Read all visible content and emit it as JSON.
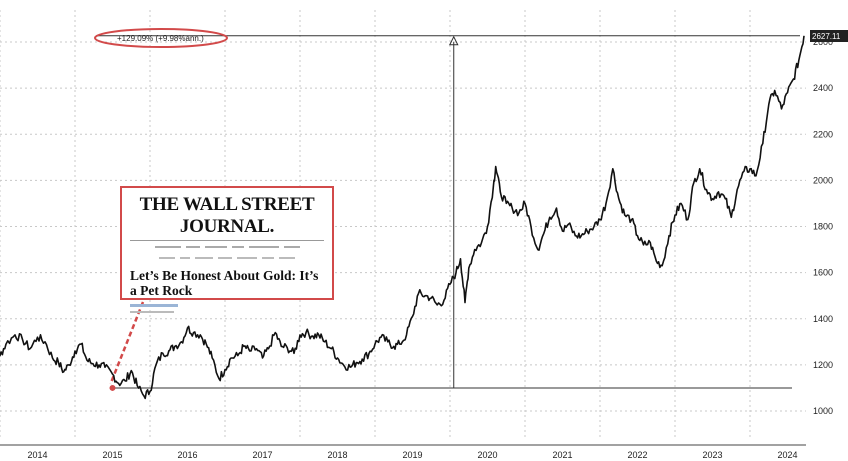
{
  "chart_data": {
    "type": "line",
    "x_tick_labels": [
      "2014",
      "2015",
      "2016",
      "2017",
      "2018",
      "2019",
      "2020",
      "2021",
      "2022",
      "2023",
      "2024"
    ],
    "y_tick_labels": [
      "1000",
      "1200",
      "1400",
      "1600",
      "1800",
      "2000",
      "2200",
      "2400",
      "2600"
    ],
    "ylim": [
      950,
      2650
    ],
    "xlim": [
      2013.7,
      2024.75
    ],
    "grid": true,
    "y_axis_position": "right",
    "series": [
      {
        "color": "#111111",
        "points": [
          [
            2013.7,
            1300
          ],
          [
            2013.82,
            1360
          ],
          [
            2013.92,
            1330
          ],
          [
            2014.0,
            1240
          ],
          [
            2014.08,
            1290
          ],
          [
            2014.2,
            1330
          ],
          [
            2014.3,
            1310
          ],
          [
            2014.4,
            1270
          ],
          [
            2014.5,
            1320
          ],
          [
            2014.6,
            1300
          ],
          [
            2014.7,
            1230
          ],
          [
            2014.78,
            1210
          ],
          [
            2014.85,
            1170
          ],
          [
            2014.92,
            1200
          ],
          [
            2015.0,
            1260
          ],
          [
            2015.08,
            1290
          ],
          [
            2015.16,
            1220
          ],
          [
            2015.24,
            1205
          ],
          [
            2015.32,
            1200
          ],
          [
            2015.4,
            1190
          ],
          [
            2015.5,
            1160
          ],
          [
            2015.58,
            1120
          ],
          [
            2015.67,
            1130
          ],
          [
            2015.75,
            1175
          ],
          [
            2015.83,
            1110
          ],
          [
            2015.92,
            1065
          ],
          [
            2016.0,
            1085
          ],
          [
            2016.08,
            1200
          ],
          [
            2016.17,
            1250
          ],
          [
            2016.25,
            1260
          ],
          [
            2016.33,
            1280
          ],
          [
            2016.42,
            1300
          ],
          [
            2016.5,
            1360
          ],
          [
            2016.58,
            1340
          ],
          [
            2016.67,
            1330
          ],
          [
            2016.75,
            1290
          ],
          [
            2016.83,
            1230
          ],
          [
            2016.92,
            1140
          ],
          [
            2017.0,
            1180
          ],
          [
            2017.08,
            1230
          ],
          [
            2017.17,
            1240
          ],
          [
            2017.25,
            1280
          ],
          [
            2017.33,
            1260
          ],
          [
            2017.42,
            1270
          ],
          [
            2017.5,
            1230
          ],
          [
            2017.58,
            1270
          ],
          [
            2017.67,
            1340
          ],
          [
            2017.75,
            1280
          ],
          [
            2017.83,
            1275
          ],
          [
            2017.92,
            1250
          ],
          [
            2018.0,
            1330
          ],
          [
            2018.08,
            1340
          ],
          [
            2018.17,
            1325
          ],
          [
            2018.25,
            1330
          ],
          [
            2018.33,
            1300
          ],
          [
            2018.42,
            1270
          ],
          [
            2018.5,
            1230
          ],
          [
            2018.58,
            1200
          ],
          [
            2018.67,
            1190
          ],
          [
            2018.75,
            1210
          ],
          [
            2018.83,
            1225
          ],
          [
            2018.92,
            1250
          ],
          [
            2019.0,
            1290
          ],
          [
            2019.08,
            1320
          ],
          [
            2019.17,
            1300
          ],
          [
            2019.25,
            1280
          ],
          [
            2019.33,
            1290
          ],
          [
            2019.42,
            1330
          ],
          [
            2019.5,
            1410
          ],
          [
            2019.58,
            1510
          ],
          [
            2019.67,
            1500
          ],
          [
            2019.75,
            1490
          ],
          [
            2019.83,
            1460
          ],
          [
            2019.92,
            1480
          ],
          [
            2020.0,
            1550
          ],
          [
            2020.08,
            1600
          ],
          [
            2020.14,
            1660
          ],
          [
            2020.2,
            1470
          ],
          [
            2020.25,
            1620
          ],
          [
            2020.33,
            1700
          ],
          [
            2020.42,
            1730
          ],
          [
            2020.5,
            1800
          ],
          [
            2020.58,
            1980
          ],
          [
            2020.61,
            2060
          ],
          [
            2020.67,
            1950
          ],
          [
            2020.75,
            1900
          ],
          [
            2020.83,
            1880
          ],
          [
            2020.92,
            1860
          ],
          [
            2021.0,
            1900
          ],
          [
            2021.08,
            1800
          ],
          [
            2021.17,
            1700
          ],
          [
            2021.25,
            1770
          ],
          [
            2021.33,
            1840
          ],
          [
            2021.42,
            1880
          ],
          [
            2021.5,
            1780
          ],
          [
            2021.58,
            1810
          ],
          [
            2021.67,
            1760
          ],
          [
            2021.75,
            1760
          ],
          [
            2021.83,
            1780
          ],
          [
            2021.92,
            1800
          ],
          [
            2022.0,
            1830
          ],
          [
            2022.08,
            1900
          ],
          [
            2022.17,
            2050
          ],
          [
            2022.25,
            1920
          ],
          [
            2022.33,
            1850
          ],
          [
            2022.42,
            1830
          ],
          [
            2022.5,
            1760
          ],
          [
            2022.58,
            1720
          ],
          [
            2022.67,
            1730
          ],
          [
            2022.75,
            1650
          ],
          [
            2022.83,
            1630
          ],
          [
            2022.92,
            1760
          ],
          [
            2023.0,
            1850
          ],
          [
            2023.08,
            1900
          ],
          [
            2023.17,
            1830
          ],
          [
            2023.25,
            1990
          ],
          [
            2023.33,
            2050
          ],
          [
            2023.42,
            1960
          ],
          [
            2023.5,
            1920
          ],
          [
            2023.58,
            1950
          ],
          [
            2023.67,
            1920
          ],
          [
            2023.75,
            1840
          ],
          [
            2023.83,
            1960
          ],
          [
            2023.92,
            2040
          ],
          [
            2024.0,
            2050
          ],
          [
            2024.08,
            2020
          ],
          [
            2024.17,
            2160
          ],
          [
            2024.25,
            2330
          ],
          [
            2024.33,
            2390
          ],
          [
            2024.42,
            2310
          ],
          [
            2024.5,
            2380
          ],
          [
            2024.58,
            2440
          ],
          [
            2024.65,
            2520
          ],
          [
            2024.72,
            2627
          ]
        ]
      }
    ],
    "last_value_label": "2627.11",
    "annotations": {
      "gain_text": "+129.09% (+9.98%ann.)",
      "base_level": 1100,
      "top_level": 2627,
      "base_x_start": 2015.5,
      "vertical_arrow_x": 2020.05,
      "circle_point": [
        2015.5,
        1100
      ]
    },
    "colors": {
      "line": "#111111",
      "grid": "#c8c8c8",
      "annotation_red": "#d24a4a",
      "last_label_bg": "#222222"
    }
  },
  "wsj_clipping": {
    "masthead": "THE WALL STREET JOURNAL.",
    "headline": "Let’s Be Honest About Gold: It’s a Pet Rock"
  }
}
